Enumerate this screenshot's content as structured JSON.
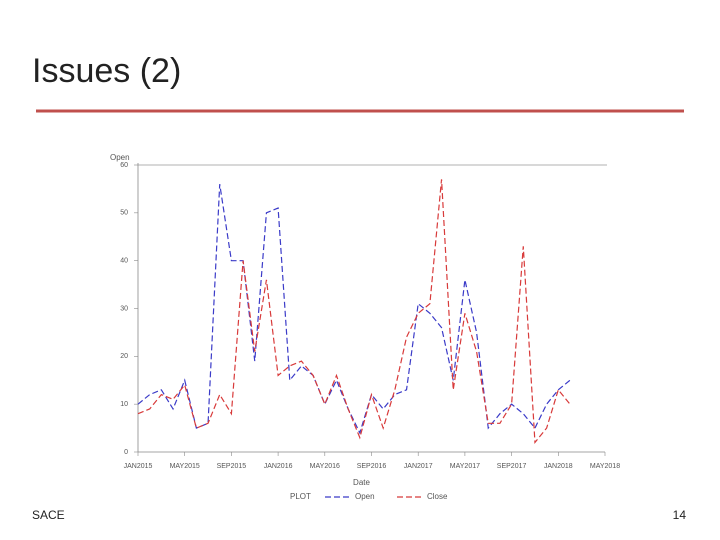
{
  "title": "Issues (2)",
  "footer": {
    "left": "SACE",
    "right": "14"
  },
  "chart_data": {
    "type": "line",
    "y_label": "Open",
    "x_label": "Date",
    "legend_title": "PLOT",
    "x": [
      "2015-01",
      "2015-02",
      "2015-03",
      "2015-04",
      "2015-05",
      "2015-06",
      "2015-07",
      "2015-08",
      "2015-09",
      "2015-10",
      "2015-11",
      "2015-12",
      "2016-01",
      "2016-02",
      "2016-03",
      "2016-04",
      "2016-05",
      "2016-06",
      "2016-07",
      "2016-08",
      "2016-09",
      "2016-10",
      "2016-11",
      "2016-12",
      "2017-01",
      "2017-02",
      "2017-03",
      "2017-04",
      "2017-05",
      "2017-06",
      "2017-07",
      "2017-08",
      "2017-09",
      "2017-10",
      "2017-11",
      "2017-12",
      "2018-01",
      "2018-02"
    ],
    "series": [
      {
        "name": "Open",
        "color": "#3b3bc8",
        "values": [
          10,
          12,
          13,
          9,
          15,
          5,
          6,
          56,
          40,
          40,
          19,
          50,
          51,
          15,
          18,
          16,
          10,
          15,
          9,
          4,
          12,
          9,
          12,
          13,
          31,
          29,
          26,
          15,
          36,
          25,
          5,
          8,
          10,
          8,
          5,
          10,
          13,
          15
        ]
      },
      {
        "name": "Close",
        "color": "#d83a3a",
        "values": [
          8,
          9,
          12,
          11,
          14,
          5,
          6,
          12,
          8,
          40,
          21,
          36,
          16,
          18,
          19,
          16,
          10,
          16,
          9,
          3,
          12,
          5,
          13,
          24,
          29,
          31,
          57,
          13,
          29,
          21,
          6,
          6,
          10,
          43,
          2,
          5,
          13,
          10
        ]
      }
    ],
    "xlim": [
      "2015-01",
      "2018-05"
    ],
    "xticks": [
      {
        "value": "2015-01",
        "label": "JAN2015"
      },
      {
        "value": "2015-05",
        "label": "MAY2015"
      },
      {
        "value": "2015-09",
        "label": "SEP2015"
      },
      {
        "value": "2016-01",
        "label": "JAN2016"
      },
      {
        "value": "2016-05",
        "label": "MAY2016"
      },
      {
        "value": "2016-09",
        "label": "SEP2016"
      },
      {
        "value": "2017-01",
        "label": "JAN2017"
      },
      {
        "value": "2017-05",
        "label": "MAY2017"
      },
      {
        "value": "2017-09",
        "label": "SEP2017"
      },
      {
        "value": "2018-01",
        "label": "JAN2018"
      },
      {
        "value": "2018-05",
        "label": "MAY2018"
      }
    ],
    "ylim": [
      0,
      60
    ],
    "yticks": [
      0,
      10,
      20,
      30,
      40,
      50,
      60
    ],
    "dashed": true
  }
}
